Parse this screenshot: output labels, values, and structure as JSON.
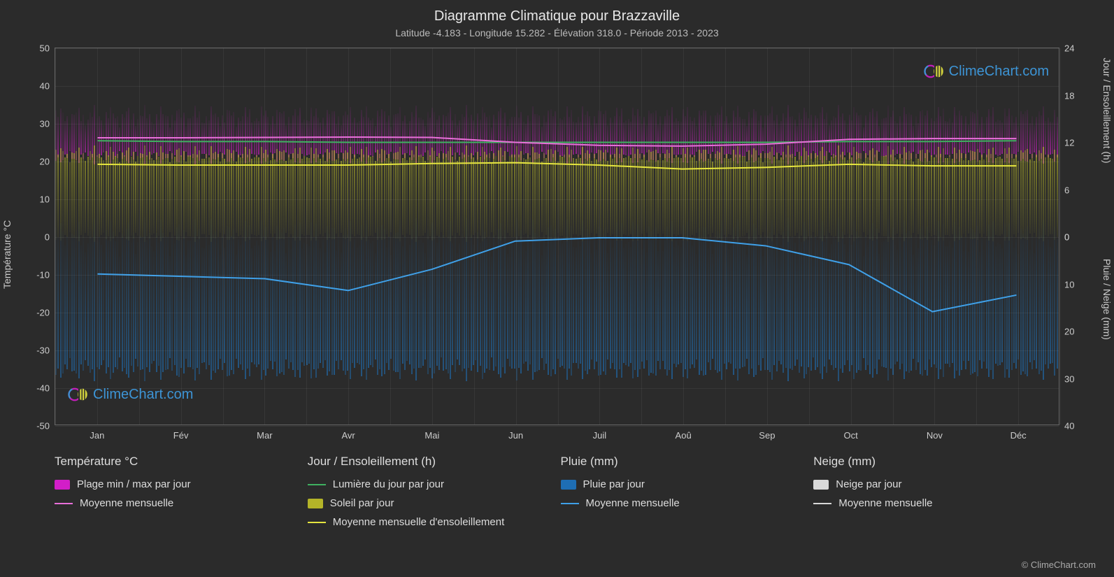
{
  "title": "Diagramme Climatique pour Brazzaville",
  "subtitle": "Latitude -4.183 - Longitude 15.282 - Élévation 318.0 - Période 2013 - 2023",
  "background_color": "#2b2b2b",
  "grid_color": "rgba(255,255,255,0.06)",
  "text_color": "#cccccc",
  "months": [
    "Jan",
    "Fév",
    "Mar",
    "Avr",
    "Mai",
    "Jun",
    "Juil",
    "Aoû",
    "Sep",
    "Oct",
    "Nov",
    "Déc"
  ],
  "y_left": {
    "label": "Température °C",
    "min": -50,
    "max": 50,
    "step": 10
  },
  "y_right_top": {
    "label": "Jour / Ensoleillement (h)",
    "min": 0,
    "max": 24,
    "step": 6,
    "zero_at_yleft": 0
  },
  "y_right_bottom": {
    "label": "Pluie / Neige (mm)",
    "min": 0,
    "max": 40,
    "step": 10,
    "zero_at_yleft": 0
  },
  "temperature_band_c": {
    "low": 21,
    "high": 32,
    "color": "#d21ec8"
  },
  "sunshine_band_h": {
    "low": 0,
    "high": 10.5,
    "mapped_c_low": 0,
    "mapped_c_high": 22,
    "color": "#b4b428"
  },
  "rain_band_mm": {
    "low": 0,
    "high": 28,
    "mapped_c_low": 0,
    "mapped_c_high": -35,
    "color": "#1e6eb4"
  },
  "lines": {
    "moyenne_temp": {
      "color": "#e86fd9",
      "width": 2,
      "values_c": [
        26.2,
        26.2,
        26.3,
        26.4,
        26.3,
        25.0,
        24.2,
        24.0,
        24.5,
        25.8,
        26.0,
        26.0
      ]
    },
    "lumiere_jour": {
      "color": "#3fb060",
      "width": 2,
      "values_h": [
        12.2,
        12.1,
        12.1,
        12.0,
        12.0,
        12.0,
        12.0,
        12.0,
        12.0,
        12.1,
        12.1,
        12.2
      ]
    },
    "moyenne_soleil": {
      "color": "#e5e53f",
      "width": 2,
      "values_h": [
        9.2,
        9.1,
        9.1,
        9.1,
        9.3,
        9.4,
        9.1,
        8.6,
        8.8,
        9.2,
        9.0,
        9.0
      ]
    },
    "moyenne_pluie": {
      "color": "#3fa0e8",
      "width": 2,
      "values_mm": [
        8.0,
        8.5,
        9.0,
        11.5,
        7.0,
        1.0,
        0.3,
        0.3,
        2.0,
        6.0,
        16.0,
        12.5
      ]
    }
  },
  "legend": {
    "cols": [
      {
        "head": "Température °C",
        "items": [
          {
            "type": "swatch",
            "color": "#d21ec8",
            "label": "Plage min / max par jour"
          },
          {
            "type": "line",
            "color": "#e86fd9",
            "label": "Moyenne mensuelle"
          }
        ]
      },
      {
        "head": "Jour / Ensoleillement (h)",
        "items": [
          {
            "type": "line",
            "color": "#3fb060",
            "label": "Lumière du jour par jour"
          },
          {
            "type": "swatch",
            "color": "#b4b428",
            "label": "Soleil par jour"
          },
          {
            "type": "line",
            "color": "#e5e53f",
            "label": "Moyenne mensuelle d'ensoleillement"
          }
        ]
      },
      {
        "head": "Pluie (mm)",
        "items": [
          {
            "type": "swatch",
            "color": "#1e6eb4",
            "label": "Pluie par jour"
          },
          {
            "type": "line",
            "color": "#3fa0e8",
            "label": "Moyenne mensuelle"
          }
        ]
      },
      {
        "head": "Neige (mm)",
        "items": [
          {
            "type": "swatch",
            "color": "#d8d8d8",
            "label": "Neige par jour"
          },
          {
            "type": "line",
            "color": "#d8d8d8",
            "label": "Moyenne mensuelle"
          }
        ]
      }
    ]
  },
  "watermark_text": "ClimeChart.com",
  "copyright": "© ClimeChart.com"
}
